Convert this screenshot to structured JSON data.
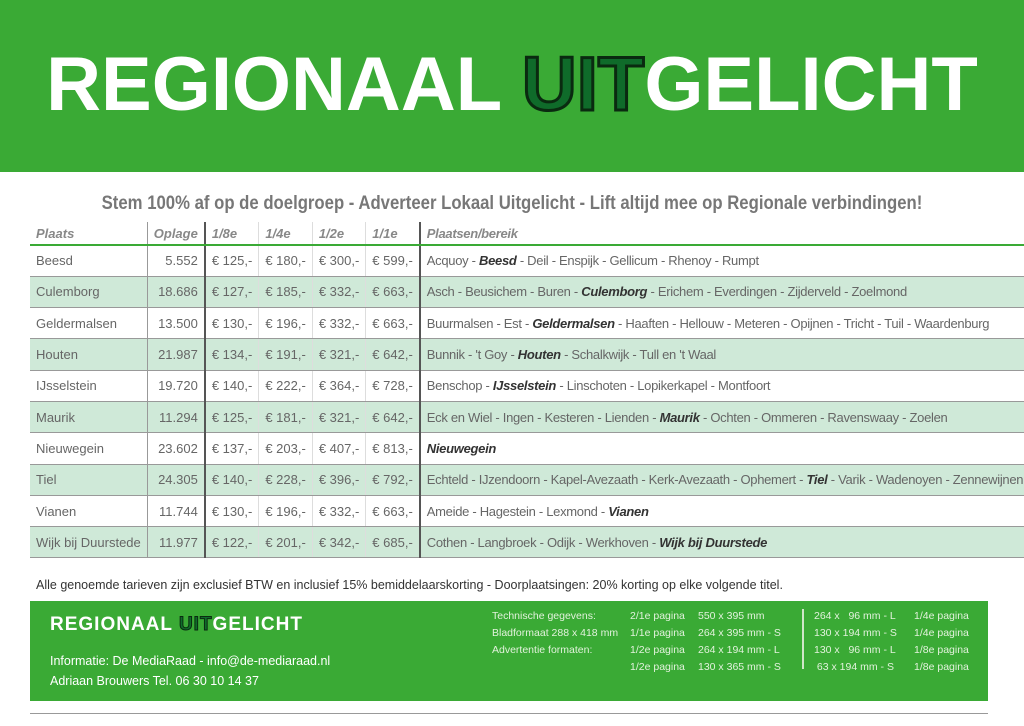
{
  "header": {
    "title_pre": "REGIONAAL ",
    "title_uit": "UIT",
    "title_post": "GELICHT"
  },
  "subtitle": "Stem 100% af op de doelgroep - Adverteer Lokaal Uitgelicht - Lift altijd mee op Regionale verbindingen!",
  "table": {
    "columns": [
      "Plaats",
      "Oplage",
      "1/8e",
      "1/4e",
      "1/2e",
      "1/1e",
      "Plaatsen/bereik"
    ],
    "rows": [
      {
        "plaats": "Beesd",
        "oplage": "5.552",
        "p18": "€ 125,-",
        "p14": "€ 180,-",
        "p12": "€ 300,-",
        "p11": "€ 599,-",
        "pre": "Acquoy - ",
        "bold": "Beesd",
        "post": " - Deil - Enspijk - Gellicum - Rhenoy - Rumpt"
      },
      {
        "plaats": "Culemborg",
        "oplage": "18.686",
        "p18": "€ 127,-",
        "p14": "€ 185,-",
        "p12": "€ 332,-",
        "p11": "€ 663,-",
        "pre": "Asch - Beusichem - Buren - ",
        "bold": "Culemborg",
        "post": " - Erichem - Everdingen - Zijderveld - Zoelmond"
      },
      {
        "plaats": "Geldermalsen",
        "oplage": "13.500",
        "p18": "€ 130,-",
        "p14": "€ 196,-",
        "p12": "€ 332,-",
        "p11": "€ 663,-",
        "pre": "Buurmalsen - Est - ",
        "bold": "Geldermalsen",
        "post": " - Haaften - Hellouw - Meteren - Opijnen - Tricht - Tuil - Waardenburg"
      },
      {
        "plaats": "Houten",
        "oplage": "21.987",
        "p18": "€ 134,-",
        "p14": "€ 191,-",
        "p12": "€ 321,-",
        "p11": "€ 642,-",
        "pre": "Bunnik - 't Goy - ",
        "bold": "Houten",
        "post": " - Schalkwijk - Tull en 't Waal"
      },
      {
        "plaats": "IJsselstein",
        "oplage": "19.720",
        "p18": "€ 140,-",
        "p14": "€ 222,-",
        "p12": "€ 364,-",
        "p11": "€ 728,-",
        "pre": "Benschop - ",
        "bold": "IJsselstein",
        "post": " - Linschoten - Lopikerkapel - Montfoort"
      },
      {
        "plaats": "Maurik",
        "oplage": "11.294",
        "p18": "€ 125,-",
        "p14": "€ 181,-",
        "p12": "€ 321,-",
        "p11": "€ 642,-",
        "pre": "Eck en Wiel - Ingen - Kesteren - Lienden - ",
        "bold": "Maurik",
        "post": " - Ochten - Ommeren - Ravenswaay - Zoelen"
      },
      {
        "plaats": "Nieuwegein",
        "oplage": "23.602",
        "p18": "€ 137,-",
        "p14": "€ 203,-",
        "p12": "€ 407,-",
        "p11": "€ 813,-",
        "pre": "",
        "bold": "Nieuwegein",
        "post": ""
      },
      {
        "plaats": "Tiel",
        "oplage": "24.305",
        "p18": "€ 140,-",
        "p14": "€ 228,-",
        "p12": "€ 396,-",
        "p11": "€ 792,-",
        "pre": "Echteld - IJzendoorn - Kapel-Avezaath - Kerk-Avezaath - Ophemert - ",
        "bold": "Tiel",
        "post": " - Varik - Wadenoyen - Zennewijnen"
      },
      {
        "plaats": "Vianen",
        "oplage": "11.744",
        "p18": "€ 130,-",
        "p14": "€ 196,-",
        "p12": "€ 332,-",
        "p11": "€ 663,-",
        "pre": "Ameide - Hagestein - Lexmond - ",
        "bold": "Vianen",
        "post": ""
      },
      {
        "plaats": "Wijk bij Duurstede",
        "oplage": "11.977",
        "p18": "€ 122,-",
        "p14": "€ 201,-",
        "p12": "€ 342,-",
        "p11": "€ 685,-",
        "pre": "Cothen - Langbroek - Odijk - Werkhoven - ",
        "bold": "Wijk bij Duurstede",
        "post": ""
      }
    ]
  },
  "note": "Alle genoemde tarieven zijn exclusief BTW en inclusief 15% bemiddelaarskorting - Doorplaatsingen: 20% korting op elke volgende titel.",
  "footer": {
    "title_pre": "REGIONAAL ",
    "title_uit": "UIT",
    "title_post": "GELICHT",
    "info1": "Informatie: De MediaRaad  -  info@de-mediaraad.nl",
    "info2": "Adriaan Brouwers Tel. 06 30 10 14 37",
    "tech_labels": "Technische gegevens:\nBladformaat 288 x 418 mm\nAdvertentie formaten:",
    "tech_pages": "2/1e pagina\n1/1e pagina\n1/2e pagina\n1/2e pagina",
    "tech_sizes": "550 x 395 mm\n264 x 395 mm - S\n264 x 194 mm - L\n130 x 365 mm - S",
    "tech_sizes2": "264 x   96 mm - L\n130 x 194 mm - S\n130 x   96 mm - L\n 63 x 194 mm - S",
    "tech_pages2": "1/4e pagina\n1/4e pagina\n1/8e pagina\n1/8e pagina"
  },
  "colors": {
    "brand_green": "#3aaa35",
    "uit_dark_green": "#0f6b2a",
    "row_alt": "#cfe9d8"
  }
}
